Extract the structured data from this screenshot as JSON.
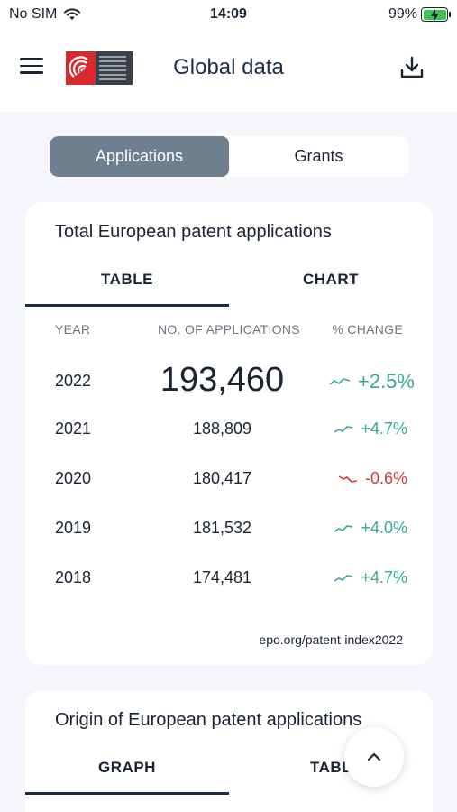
{
  "status": {
    "carrier": "No SIM",
    "time": "14:09",
    "battery": "99%"
  },
  "header": {
    "title": "Global data"
  },
  "segment": {
    "options": [
      "Applications",
      "Grants"
    ],
    "selected": "Applications"
  },
  "card1": {
    "title": "Total European patent applications",
    "tabs": [
      "TABLE",
      "CHART"
    ],
    "active_tab": "TABLE",
    "columns": [
      "YEAR",
      "NO. OF APPLICATIONS",
      "% CHANGE"
    ],
    "rows": [
      {
        "year": "2022",
        "count": "193,460",
        "change": "+2.5%",
        "trend": "up"
      },
      {
        "year": "2021",
        "count": "188,809",
        "change": "+4.7%",
        "trend": "up"
      },
      {
        "year": "2020",
        "count": "180,417",
        "change": "-0.6%",
        "trend": "down"
      },
      {
        "year": "2019",
        "count": "181,532",
        "change": "+4.0%",
        "trend": "up"
      },
      {
        "year": "2018",
        "count": "174,481",
        "change": "+4.7%",
        "trend": "up"
      }
    ],
    "source": "epo.org/patent-index2022"
  },
  "card2": {
    "title": "Origin of European patent applications",
    "tabs": [
      "GRAPH",
      "TABL"
    ],
    "active_tab": "GRAPH"
  },
  "colors": {
    "accent": "#1a2d45",
    "positive": "#37a899",
    "negative": "#d23a3a",
    "segment_active": "#6e7f90"
  },
  "icons": [
    "wifi-icon",
    "battery-icon",
    "menu-icon",
    "epo-logo",
    "download-icon",
    "trend-up-icon",
    "trend-down-icon",
    "chevron-up-icon"
  ]
}
